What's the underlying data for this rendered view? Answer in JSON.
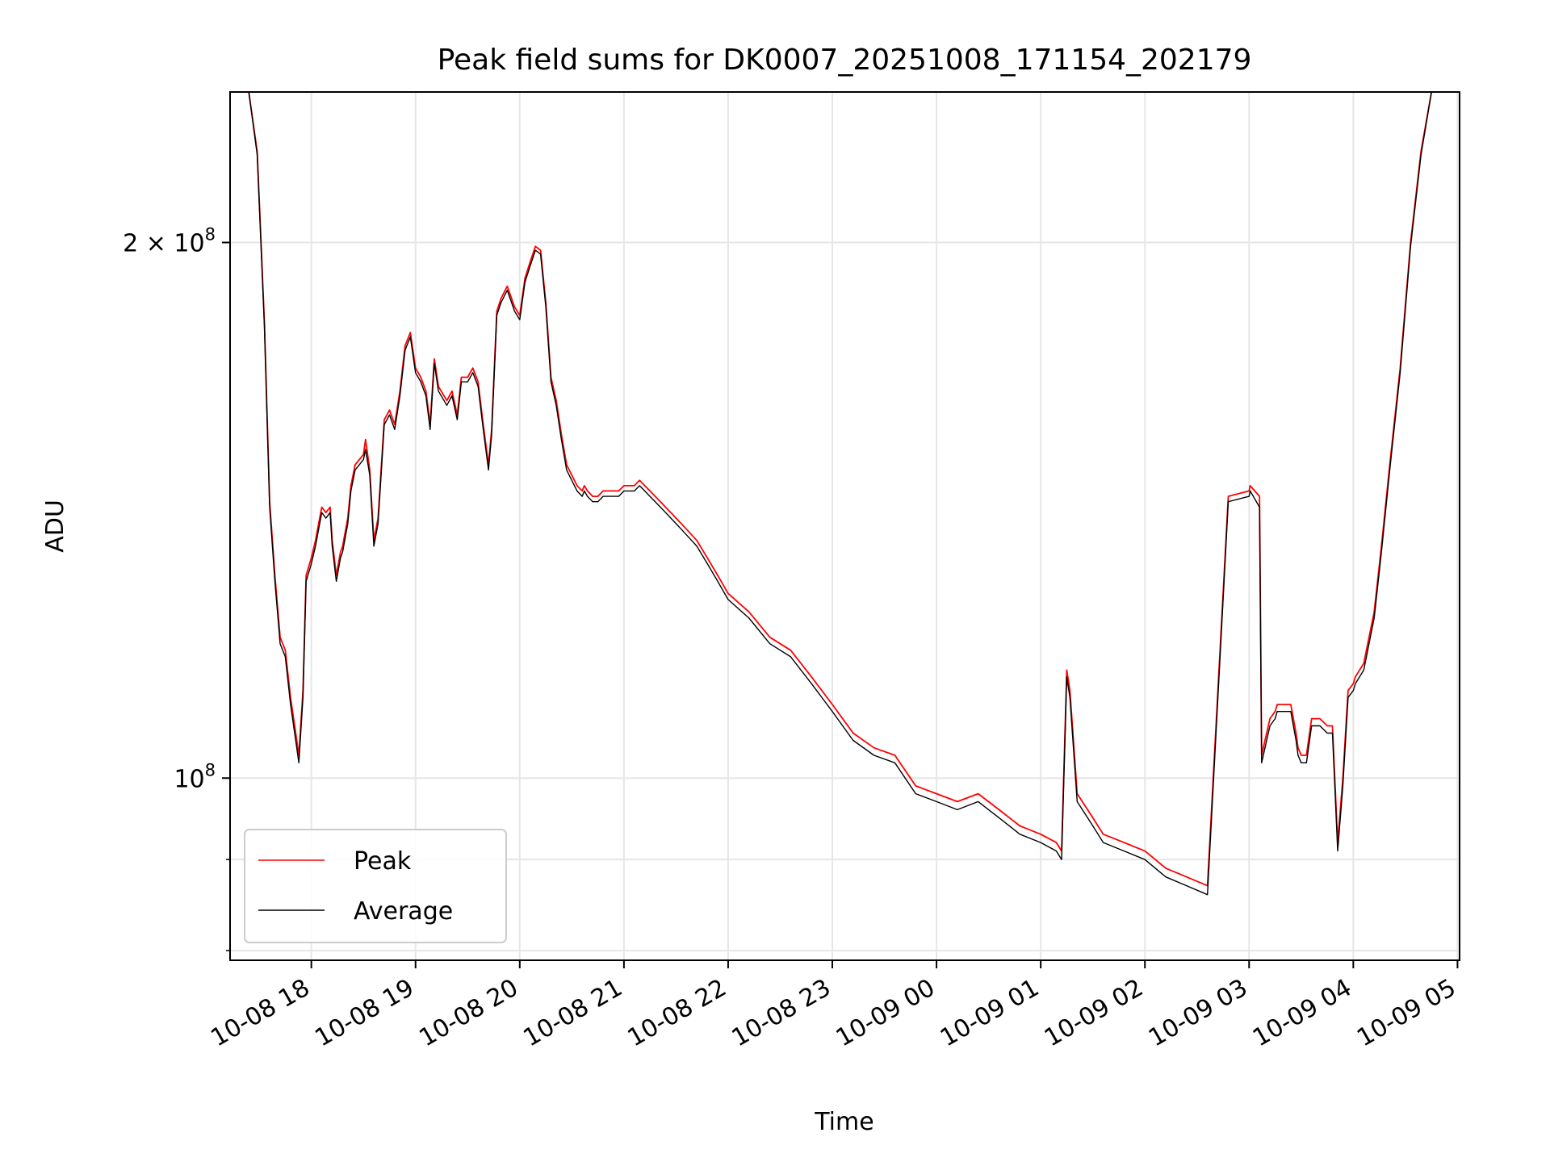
{
  "chart_data": {
    "type": "line",
    "title": "Peak field sums for DK0007_20251008_171154_202179",
    "xlabel": "Time",
    "ylabel": "ADU",
    "yscale": "log",
    "ylim": [
      79000000,
      243000000
    ],
    "xlim": [
      -0.78,
      11.02
    ],
    "x_units": "hours since 10-08 18:00",
    "grid": true,
    "legend_position": "lower-left",
    "x_ticks": [
      {
        "x": 0,
        "label": "10-08 18"
      },
      {
        "x": 1,
        "label": "10-08 19"
      },
      {
        "x": 2,
        "label": "10-08 20"
      },
      {
        "x": 3,
        "label": "10-08 21"
      },
      {
        "x": 4,
        "label": "10-08 22"
      },
      {
        "x": 5,
        "label": "10-08 23"
      },
      {
        "x": 6,
        "label": "10-09 00"
      },
      {
        "x": 7,
        "label": "10-09 01"
      },
      {
        "x": 8,
        "label": "10-09 02"
      },
      {
        "x": 9,
        "label": "10-09 03"
      },
      {
        "x": 10,
        "label": "10-09 04"
      },
      {
        "x": 11,
        "label": "10-09 05"
      }
    ],
    "y_ticks": [
      {
        "value": 100000000,
        "mantissa": "",
        "base": "10",
        "exponent": "8"
      },
      {
        "value": 200000000,
        "mantissa": "2 × ",
        "base": "10",
        "exponent": "8"
      }
    ],
    "series": [
      {
        "name": "Peak",
        "color": "#ff0000",
        "x": [
          -0.78,
          -0.6,
          -0.52,
          -0.45,
          -0.4,
          -0.35,
          -0.3,
          -0.25,
          -0.2,
          -0.15,
          -0.12,
          -0.08,
          -0.05,
          0,
          0.04,
          0.06,
          0.1,
          0.14,
          0.18,
          0.2,
          0.24,
          0.28,
          0.3,
          0.35,
          0.38,
          0.42,
          0.5,
          0.52,
          0.56,
          0.6,
          0.64,
          0.7,
          0.75,
          0.8,
          0.85,
          0.9,
          0.95,
          1.0,
          1.05,
          1.1,
          1.14,
          1.18,
          1.22,
          1.3,
          1.35,
          1.4,
          1.44,
          1.5,
          1.55,
          1.6,
          1.65,
          1.7,
          1.73,
          1.78,
          1.82,
          1.88,
          1.95,
          2.0,
          2.05,
          2.1,
          2.15,
          2.2,
          2.25,
          2.3,
          2.35,
          2.4,
          2.45,
          2.5,
          2.55,
          2.6,
          2.62,
          2.65,
          2.7,
          2.75,
          2.8,
          2.85,
          2.9,
          2.95,
          3.0,
          3.05,
          3.1,
          3.15,
          3.2,
          3.25,
          3.3,
          3.35,
          3.4,
          3.45,
          3.5,
          3.55,
          3.6,
          3.65,
          3.7,
          3.8,
          3.9,
          4.0,
          4.2,
          4.4,
          4.6,
          4.8,
          5.0,
          5.2,
          5.4,
          5.6,
          5.8,
          6.0,
          6.2,
          6.4,
          6.6,
          6.8,
          7.0,
          7.15,
          7.2,
          7.25,
          7.28,
          7.35,
          7.45,
          7.5,
          7.6,
          7.8,
          8.0,
          8.1,
          8.2,
          8.4,
          8.6,
          8.8,
          9.0,
          9.01,
          9.1,
          9.12,
          9.2,
          9.25,
          9.27,
          9.3,
          9.4,
          9.45,
          9.47,
          9.5,
          9.55,
          9.6,
          9.65,
          9.68,
          9.75,
          9.8,
          9.85,
          9.9,
          9.95,
          10.0,
          10.02,
          10.1,
          10.2,
          10.27,
          10.35,
          10.45,
          10.55,
          10.65,
          10.75,
          11.02
        ],
        "values": [
          243000000,
          243000000,
          225000000,
          180000000,
          143000000,
          130000000,
          120000000,
          118000000,
          111000000,
          106000000,
          103000000,
          112000000,
          130000000,
          133000000,
          136000000,
          138000000,
          142000000,
          141000000,
          142000000,
          136000000,
          130000000,
          134000000,
          135000000,
          140000000,
          146000000,
          150000000,
          152000000,
          155000000,
          149000000,
          136000000,
          140000000,
          159000000,
          161000000,
          158000000,
          165000000,
          175000000,
          178000000,
          170000000,
          168000000,
          165000000,
          158000000,
          172000000,
          166000000,
          163000000,
          165000000,
          160000000,
          168000000,
          168000000,
          170000000,
          167000000,
          158000000,
          150000000,
          157000000,
          183000000,
          186000000,
          189000000,
          184000000,
          182000000,
          191000000,
          195000000,
          199000000,
          198000000,
          185000000,
          168000000,
          163000000,
          156000000,
          150000000,
          148000000,
          146000000,
          145000000,
          146000000,
          145000000,
          144000000,
          144000000,
          145000000,
          145000000,
          145000000,
          145000000,
          146000000,
          146000000,
          146000000,
          147000000,
          146000000,
          145000000,
          144000000,
          143000000,
          142000000,
          141000000,
          140000000,
          139000000,
          138000000,
          137000000,
          136000000,
          133000000,
          130000000,
          127000000,
          124000000,
          120000000,
          118000000,
          114000000,
          110000000,
          106000000,
          104000000,
          103000000,
          99000000,
          98000000,
          97000000,
          98000000,
          96000000,
          94000000,
          93000000,
          92000000,
          91000000,
          115000000,
          112000000,
          98000000,
          96000000,
          95000000,
          93000000,
          92000000,
          91000000,
          90000000,
          89000000,
          88000000,
          87000000,
          144000000,
          145000000,
          146000000,
          144000000,
          103000000,
          108000000,
          109000000,
          110000000,
          110000000,
          110000000,
          106000000,
          104000000,
          103000000,
          103000000,
          108000000,
          108000000,
          108000000,
          107000000,
          107000000,
          92000000,
          100000000,
          112000000,
          113000000,
          114000000,
          116000000,
          124000000,
          135000000,
          150000000,
          170000000,
          200000000,
          225000000,
          243000000,
          243000000
        ]
      },
      {
        "name": "Average",
        "color": "#000000",
        "x": [
          -0.78,
          -0.6,
          -0.52,
          -0.45,
          -0.4,
          -0.35,
          -0.3,
          -0.25,
          -0.2,
          -0.15,
          -0.12,
          -0.08,
          -0.05,
          0,
          0.04,
          0.06,
          0.1,
          0.14,
          0.18,
          0.2,
          0.24,
          0.28,
          0.3,
          0.35,
          0.38,
          0.42,
          0.5,
          0.52,
          0.56,
          0.6,
          0.64,
          0.7,
          0.75,
          0.8,
          0.85,
          0.9,
          0.95,
          1.0,
          1.05,
          1.1,
          1.14,
          1.18,
          1.22,
          1.3,
          1.35,
          1.4,
          1.44,
          1.5,
          1.55,
          1.6,
          1.65,
          1.7,
          1.73,
          1.78,
          1.82,
          1.88,
          1.95,
          2.0,
          2.05,
          2.1,
          2.15,
          2.2,
          2.25,
          2.3,
          2.35,
          2.4,
          2.45,
          2.5,
          2.55,
          2.6,
          2.62,
          2.65,
          2.7,
          2.75,
          2.8,
          2.85,
          2.9,
          2.95,
          3.0,
          3.05,
          3.1,
          3.15,
          3.2,
          3.25,
          3.3,
          3.35,
          3.4,
          3.45,
          3.5,
          3.55,
          3.6,
          3.65,
          3.7,
          3.8,
          3.9,
          4.0,
          4.2,
          4.4,
          4.6,
          4.8,
          5.0,
          5.2,
          5.4,
          5.6,
          5.8,
          6.0,
          6.2,
          6.4,
          6.6,
          6.8,
          7.0,
          7.15,
          7.2,
          7.25,
          7.28,
          7.35,
          7.45,
          7.5,
          7.6,
          7.8,
          8.0,
          8.1,
          8.2,
          8.4,
          8.6,
          8.8,
          9.0,
          9.01,
          9.1,
          9.12,
          9.2,
          9.25,
          9.27,
          9.3,
          9.4,
          9.45,
          9.47,
          9.5,
          9.55,
          9.6,
          9.65,
          9.68,
          9.75,
          9.8,
          9.85,
          9.9,
          9.95,
          10.0,
          10.02,
          10.1,
          10.2,
          10.27,
          10.35,
          10.45,
          10.55,
          10.65,
          10.75,
          11.02
        ],
        "values": [
          243000000,
          243000000,
          224000000,
          179000000,
          142000000,
          129000000,
          119000000,
          117000000,
          110000000,
          105000000,
          102000000,
          111000000,
          129000000,
          132000000,
          135000000,
          137000000,
          141000000,
          140000000,
          141000000,
          135000000,
          129000000,
          133000000,
          134000000,
          139000000,
          145000000,
          149000000,
          151000000,
          153000000,
          148000000,
          135000000,
          139000000,
          158000000,
          160000000,
          157000000,
          164000000,
          174000000,
          177000000,
          169000000,
          167000000,
          164000000,
          157000000,
          171000000,
          165000000,
          162000000,
          164000000,
          159000000,
          167000000,
          167000000,
          169000000,
          166000000,
          157000000,
          149000000,
          156000000,
          182000000,
          185000000,
          188000000,
          183000000,
          181000000,
          190000000,
          194000000,
          198000000,
          197000000,
          184000000,
          167000000,
          162000000,
          155000000,
          149000000,
          147000000,
          145000000,
          144000000,
          145000000,
          144000000,
          143000000,
          143000000,
          144000000,
          144000000,
          144000000,
          144000000,
          145000000,
          145000000,
          145000000,
          146000000,
          145000000,
          144000000,
          143000000,
          142000000,
          141000000,
          140000000,
          139000000,
          138000000,
          137000000,
          136000000,
          135000000,
          132000000,
          129000000,
          126000000,
          123000000,
          119000000,
          117000000,
          113000000,
          109000000,
          105000000,
          103000000,
          102000000,
          98000000,
          97000000,
          96000000,
          97000000,
          95000000,
          93000000,
          92000000,
          91000000,
          90000000,
          114000000,
          111000000,
          97000000,
          95000000,
          94000000,
          92000000,
          91000000,
          90000000,
          89000000,
          88000000,
          87000000,
          86000000,
          143000000,
          144000000,
          145000000,
          142000000,
          102000000,
          107000000,
          108000000,
          109000000,
          109000000,
          109000000,
          105000000,
          103000000,
          102000000,
          102000000,
          107000000,
          107000000,
          107000000,
          106000000,
          106000000,
          91000000,
          99000000,
          111000000,
          112000000,
          113000000,
          115000000,
          123000000,
          134000000,
          149000000,
          169000000,
          199000000,
          224000000,
          243000000,
          243000000
        ]
      }
    ]
  }
}
